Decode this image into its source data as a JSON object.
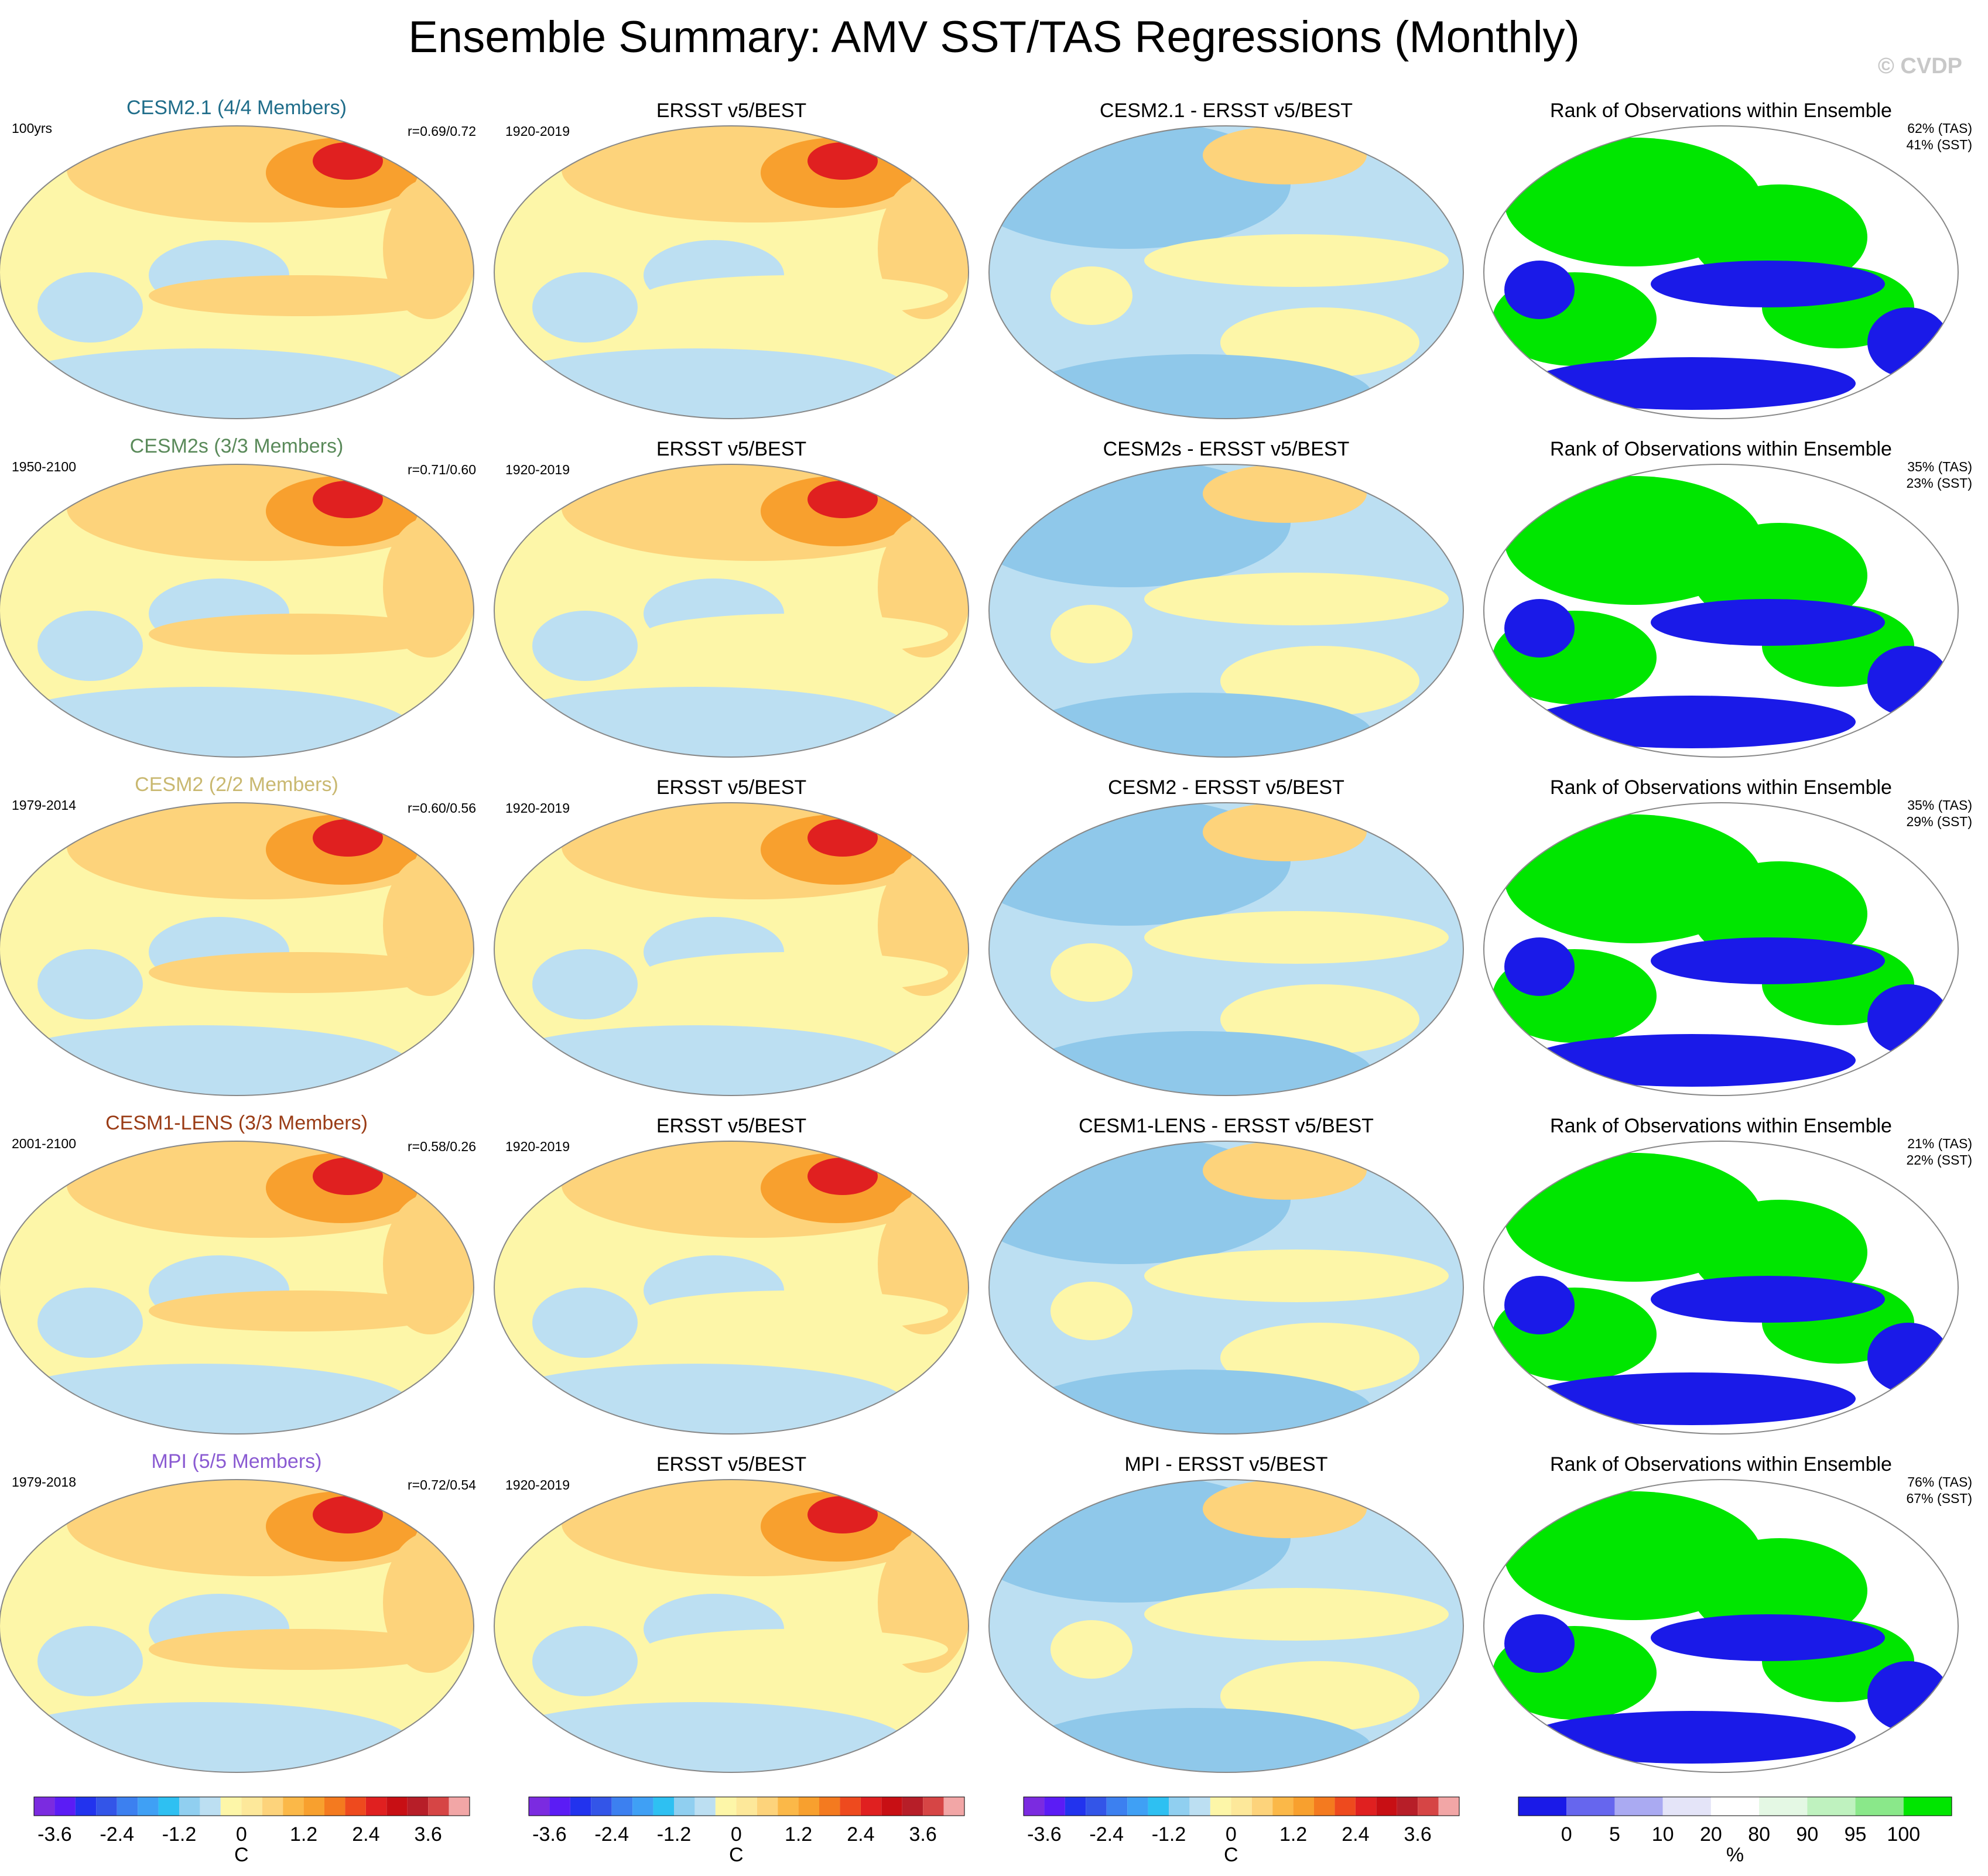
{
  "figure": {
    "title": "Ensemble Summary: AMV SST/TAS Regressions (Monthly)",
    "credit": "© CVDP"
  },
  "colors": {
    "model_title_colors": [
      "#1f6d8a",
      "#5a8a5a",
      "#c9b870",
      "#9a3c16",
      "#8a5ad2"
    ],
    "temp_levels": [
      "#7b2be0",
      "#5b1cf5",
      "#2233ee",
      "#3355e8",
      "#3c80f0",
      "#3fa0f5",
      "#2ec0f2",
      "#90cff0",
      "#bcdff2",
      "#fdf6a8",
      "#fde89a",
      "#fdd37b",
      "#fbb848",
      "#f8a02e",
      "#f47a1f",
      "#ee4a1e",
      "#e02020",
      "#c80f14",
      "#b71e28",
      "#d64545",
      "#f2a6a6"
    ],
    "rank_levels": [
      "#1a1ae8",
      "#6666ee",
      "#aaaaf2",
      "#e4e4f8",
      "#ffffff",
      "#e4f8e4",
      "#bff2bf",
      "#8ae88a",
      "#00e600"
    ],
    "map_palette": {
      "cold2": "#8fc8ea",
      "cold1": "#bcdff2",
      "warm1": "#fdf6a8",
      "warm2": "#fdd37b",
      "warm3": "#f8a02e",
      "hot": "#e02020",
      "rank_green": "#00e600",
      "rank_blue": "#1a1ae8",
      "rank_white": "#ffffff",
      "outline": "#888888"
    }
  },
  "chart_data": {
    "type": "map-panel-grid",
    "rows": [
      {
        "model": "CESM2.1 (4/4 Members)",
        "period": "100yrs",
        "r": "r=0.69/0.72",
        "obs_title": "ERSST v5/BEST",
        "obs_period": "1920-2019",
        "diff_title": "CESM2.1 - ERSST v5/BEST",
        "rank_title": "Rank of Observations within Ensemble",
        "rank_tas": "62% (TAS)",
        "rank_sst": "41% (SST)"
      },
      {
        "model": "CESM2s (3/3 Members)",
        "period": "1950-2100",
        "r": "r=0.71/0.60",
        "obs_title": "ERSST v5/BEST",
        "obs_period": "1920-2019",
        "diff_title": "CESM2s - ERSST v5/BEST",
        "rank_title": "Rank of Observations within Ensemble",
        "rank_tas": "35% (TAS)",
        "rank_sst": "23% (SST)"
      },
      {
        "model": "CESM2 (2/2 Members)",
        "period": "1979-2014",
        "r": "r=0.60/0.56",
        "obs_title": "ERSST v5/BEST",
        "obs_period": "1920-2019",
        "diff_title": "CESM2 - ERSST v5/BEST",
        "rank_title": "Rank of Observations within Ensemble",
        "rank_tas": "35% (TAS)",
        "rank_sst": "29% (SST)"
      },
      {
        "model": "CESM1-LENS (3/3 Members)",
        "period": "2001-2100",
        "r": "r=0.58/0.26",
        "obs_title": "ERSST v5/BEST",
        "obs_period": "1920-2019",
        "diff_title": "CESM1-LENS - ERSST v5/BEST",
        "rank_title": "Rank of Observations within Ensemble",
        "rank_tas": "21% (TAS)",
        "rank_sst": "22% (SST)"
      },
      {
        "model": "MPI (5/5 Members)",
        "period": "1979-2018",
        "r": "r=0.72/0.54",
        "obs_title": "ERSST v5/BEST",
        "obs_period": "1920-2019",
        "diff_title": "MPI - ERSST v5/BEST",
        "rank_title": "Rank of Observations within Ensemble",
        "rank_tas": "76% (TAS)",
        "rank_sst": "67% (SST)"
      }
    ],
    "colorbars": {
      "temperature": {
        "ticks": [
          "-3.6",
          "-2.4",
          "-1.2",
          "0",
          "1.2",
          "2.4",
          "3.6"
        ],
        "units": "C"
      },
      "rank": {
        "ticks": [
          "0",
          "5",
          "10",
          "20",
          "80",
          "90",
          "95",
          "100"
        ],
        "units": "%"
      }
    }
  }
}
